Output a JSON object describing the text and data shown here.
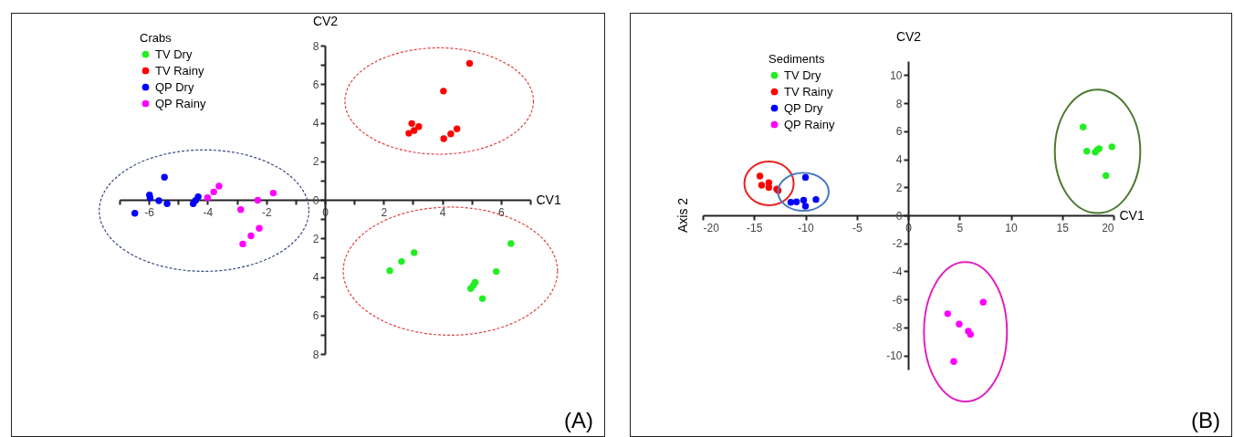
{
  "chart_data": [
    {
      "type": "scatter",
      "xlabel": "CV1",
      "ylabel": "CV2",
      "legend_title": "Crabs",
      "legend": "top left",
      "marker": "circle",
      "grid": false,
      "xlim": [
        -7,
        7
      ],
      "ylim": [
        -8,
        8
      ],
      "xticks": [
        {
          "value": -7,
          "label": null
        },
        -6,
        {
          "value": -5,
          "label": null
        },
        -4,
        {
          "value": -3,
          "label": null
        },
        -2,
        {
          "value": -1,
          "label": null
        },
        0,
        {
          "value": 1,
          "label": null
        },
        2,
        {
          "value": 3,
          "label": null
        },
        4,
        {
          "value": 5,
          "label": null
        },
        6,
        {
          "value": 7,
          "label": null
        }
      ],
      "yticks": [
        {
          "value": -8,
          "label": "8"
        },
        {
          "value": -7,
          "label": null
        },
        {
          "value": -6,
          "label": "6"
        },
        {
          "value": -5,
          "label": null
        },
        {
          "value": -4,
          "label": "4"
        },
        {
          "value": -3,
          "label": null
        },
        {
          "value": -2,
          "label": "2"
        },
        {
          "value": -1,
          "label": null
        },
        0,
        {
          "value": 1,
          "label": null
        },
        2,
        {
          "value": 3,
          "label": null
        },
        4,
        {
          "value": 5,
          "label": null
        },
        6,
        {
          "value": 7,
          "label": null
        },
        8
      ],
      "annotations": [
        "(A)"
      ],
      "series": [
        {
          "name": "TV Dry",
          "color": "#22ee22",
          "x": [
            6.34,
            2.21,
            2.61,
            3.04,
            5.84,
            4.97,
            5.06,
            5.12,
            5.37
          ],
          "values": [
            -2.27,
            -3.68,
            -3.2,
            -2.74,
            -3.72,
            -4.6,
            -4.44,
            -4.28,
            -5.13
          ]
        },
        {
          "name": "TV Rainy",
          "color": "#ff0000",
          "x": [
            4.93,
            4.04,
            2.96,
            3.2,
            2.86,
            3.04,
            4.05,
            4.29,
            4.5
          ],
          "values": [
            7.08,
            5.64,
            3.96,
            3.8,
            3.45,
            3.6,
            3.17,
            3.42,
            3.68
          ]
        },
        {
          "name": "QP Dry",
          "color": "#0000ff",
          "x": [
            -6.48,
            -5.98,
            -5.96,
            -5.66,
            -5.38,
            -5.47,
            -4.49,
            -4.41,
            -4.32
          ],
          "values": [
            -0.7,
            0.25,
            0.1,
            -0.05,
            -0.2,
            1.17,
            -0.2,
            -0.03,
            0.16
          ]
        },
        {
          "name": "QP Rainy",
          "color": "#ff00ff",
          "x": [
            -4.0,
            -3.79,
            -3.61,
            -2.87,
            -2.29,
            -1.76,
            -2.24,
            -2.52,
            -2.8
          ],
          "values": [
            0.11,
            0.41,
            0.71,
            -0.51,
            -0.02,
            0.35,
            -1.48,
            -1.87,
            -2.29
          ]
        }
      ]
    },
    {
      "type": "scatter",
      "xlabel": "CV1",
      "ylabel": "CV2",
      "legend_title": "Sediments",
      "legend": "top left",
      "marker": "circle",
      "grid": false,
      "xlim": [
        -20,
        20
      ],
      "ylim": [
        -11,
        11
      ],
      "xticks": [
        -20,
        -15,
        -10,
        -5,
        0,
        5,
        10,
        15,
        20
      ],
      "yticks": [
        -10,
        -8,
        -6,
        -4,
        -2,
        0,
        2,
        4,
        6,
        8,
        10
      ],
      "annotations": [
        "Axis 2",
        "(B)"
      ],
      "series": [
        {
          "name": "TV Dry",
          "color": "#22ee22",
          "x": [
            17.04,
            17.4,
            18.22,
            18.4,
            18.6,
            19.85,
            19.26
          ],
          "values": [
            6.3,
            4.57,
            4.5,
            4.65,
            4.76,
            4.89,
            2.83
          ]
        },
        {
          "name": "TV Rainy",
          "color": "#ff0000",
          "x": [
            -14.44,
            -14.27,
            -13.57,
            -13.57,
            -12.8,
            -12.66
          ],
          "values": [
            2.8,
            2.15,
            2.33,
            1.98,
            1.87,
            1.76
          ]
        },
        {
          "name": "QP Dry",
          "color": "#0000ff",
          "x": [
            -10.0,
            -11.43,
            -10.88,
            -10.18,
            -10.0,
            -8.98
          ],
          "values": [
            2.7,
            0.93,
            0.96,
            1.07,
            0.65,
            1.13
          ]
        },
        {
          "name": "QP Rainy",
          "color": "#ff00ff",
          "x": [
            7.31,
            3.85,
            4.97,
            5.86,
            6.07,
            4.44
          ],
          "values": [
            -6.2,
            -7.02,
            -7.76,
            -8.26,
            -8.5,
            -10.43
          ]
        }
      ]
    }
  ]
}
